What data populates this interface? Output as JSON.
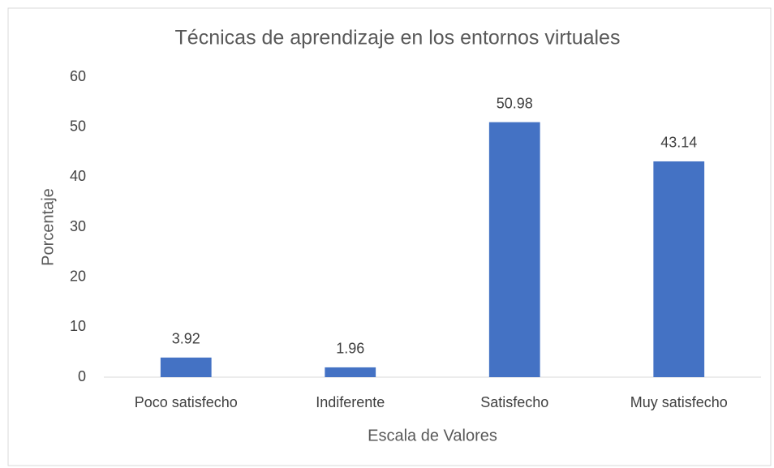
{
  "chart_data": {
    "type": "bar",
    "title": "Técnicas de aprendizaje en los entornos virtuales",
    "x_label": "Escala de Valores",
    "y_label": "Porcentaje",
    "categories": [
      "Poco satisfecho",
      "Indiferente",
      "Satisfecho",
      "Muy satisfecho"
    ],
    "values": [
      3.92,
      1.96,
      50.98,
      43.14
    ],
    "color": "#4472c4",
    "ylim": [
      0,
      60
    ],
    "yticks": [
      0,
      10,
      20,
      30,
      40,
      50,
      60
    ],
    "grid": false
  }
}
